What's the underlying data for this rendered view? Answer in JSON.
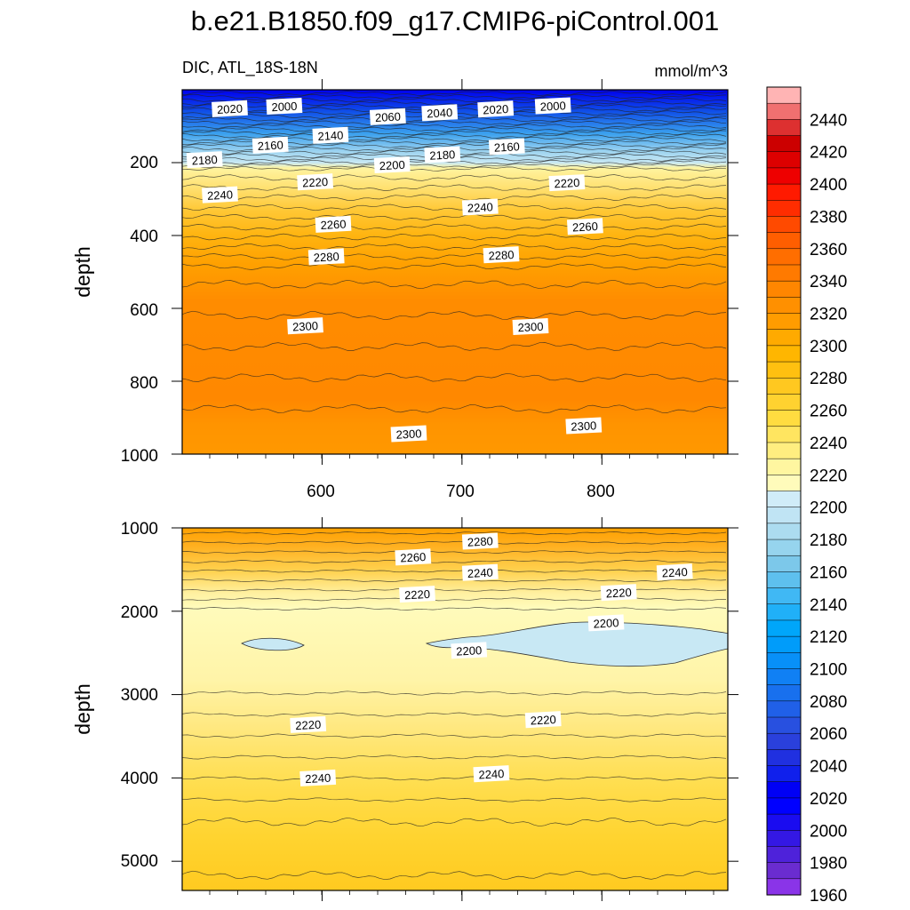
{
  "title": "b.e21.B1850.f09_g17.CMIP6-piControl.001",
  "variable_label": "DIC, ATL_18S-18N",
  "units_label": "mmol/m^3",
  "chart_data": [
    {
      "panel": "upper",
      "type": "contour",
      "xlabel": "",
      "ylabel": "depth",
      "xlim": [
        500,
        890
      ],
      "ylim": [
        1000,
        0
      ],
      "x_ticks": [
        "600",
        "700",
        "800"
      ],
      "y_ticks": [
        "200",
        "400",
        "600",
        "800",
        "1000"
      ],
      "contour_labels": [
        {
          "text": "2020",
          "x": 534,
          "y": 52
        },
        {
          "text": "2000",
          "x": 573,
          "y": 45
        },
        {
          "text": "2060",
          "x": 647,
          "y": 74
        },
        {
          "text": "2040",
          "x": 684,
          "y": 63
        },
        {
          "text": "2020",
          "x": 724,
          "y": 53
        },
        {
          "text": "2000",
          "x": 765,
          "y": 44
        },
        {
          "text": "2160",
          "x": 563,
          "y": 152
        },
        {
          "text": "2140",
          "x": 606,
          "y": 125
        },
        {
          "text": "2180",
          "x": 516,
          "y": 192
        },
        {
          "text": "2200",
          "x": 650,
          "y": 206
        },
        {
          "text": "2180",
          "x": 686,
          "y": 178
        },
        {
          "text": "2160",
          "x": 732,
          "y": 156
        },
        {
          "text": "2220",
          "x": 595,
          "y": 253
        },
        {
          "text": "2240",
          "x": 527,
          "y": 288
        },
        {
          "text": "2220",
          "x": 775,
          "y": 255
        },
        {
          "text": "2240",
          "x": 713,
          "y": 322
        },
        {
          "text": "2260",
          "x": 608,
          "y": 369
        },
        {
          "text": "2260",
          "x": 788,
          "y": 375
        },
        {
          "text": "2280",
          "x": 603,
          "y": 458
        },
        {
          "text": "2280",
          "x": 728,
          "y": 453
        },
        {
          "text": "2300",
          "x": 588,
          "y": 648
        },
        {
          "text": "2300",
          "x": 749,
          "y": 650
        },
        {
          "text": "2300",
          "x": 662,
          "y": 944
        },
        {
          "text": "2300",
          "x": 787,
          "y": 922
        }
      ]
    },
    {
      "panel": "lower",
      "type": "contour",
      "xlabel": "",
      "ylabel": "depth",
      "xlim": [
        500,
        890
      ],
      "ylim": [
        5350,
        1000
      ],
      "y_ticks": [
        "1000",
        "2000",
        "3000",
        "4000",
        "5000"
      ],
      "contour_labels": [
        {
          "text": "2280",
          "x": 713,
          "y": 1160
        },
        {
          "text": "2260",
          "x": 665,
          "y": 1350
        },
        {
          "text": "2240",
          "x": 713,
          "y": 1535
        },
        {
          "text": "2240",
          "x": 852,
          "y": 1530
        },
        {
          "text": "2220",
          "x": 668,
          "y": 1795
        },
        {
          "text": "2220",
          "x": 812,
          "y": 1775
        },
        {
          "text": "2200",
          "x": 803,
          "y": 2140
        },
        {
          "text": "2200",
          "x": 705,
          "y": 2470
        },
        {
          "text": "2220",
          "x": 590,
          "y": 3360
        },
        {
          "text": "2220",
          "x": 758,
          "y": 3300
        },
        {
          "text": "2240",
          "x": 597,
          "y": 4000
        },
        {
          "text": "2240",
          "x": 721,
          "y": 3950
        }
      ]
    }
  ],
  "colorbar": {
    "labels": [
      "2440",
      "2420",
      "2400",
      "2380",
      "2360",
      "2340",
      "2320",
      "2300",
      "2280",
      "2260",
      "2240",
      "2220",
      "2200",
      "2180",
      "2160",
      "2140",
      "2120",
      "2100",
      "2080",
      "2060",
      "2040",
      "2020",
      "2000",
      "1980",
      "1960"
    ],
    "colors": [
      "#ffb4b4",
      "#f07070",
      "#dd3030",
      "#cc0000",
      "#dd0000",
      "#ee0000",
      "#ff1a00",
      "#ff2d00",
      "#ff4a00",
      "#ff5e00",
      "#ff6e00",
      "#ff7a00",
      "#ff8600",
      "#ff9000",
      "#ff9c00",
      "#ffaa00",
      "#ffb600",
      "#ffc010",
      "#ffc820",
      "#ffd230",
      "#ffdc40",
      "#ffe560",
      "#ffee80",
      "#fff6a0",
      "#fffbbb",
      "#d0ecf8",
      "#c0e4f4",
      "#acdcf0",
      "#96d4ee",
      "#7cc8ea",
      "#5ec0ee",
      "#40b8f4",
      "#20b0f8",
      "#00a6fa",
      "#009cfa",
      "#0890f8",
      "#1080f4",
      "#1870ee",
      "#2060e8",
      "#2850e0",
      "#2a40dc",
      "#2030e0",
      "#1020ec",
      "#0000f5",
      "#0000ff",
      "#1a0cf0",
      "#3418e4",
      "#4e22da",
      "#6a2cd0",
      "#8a34e8"
    ]
  }
}
